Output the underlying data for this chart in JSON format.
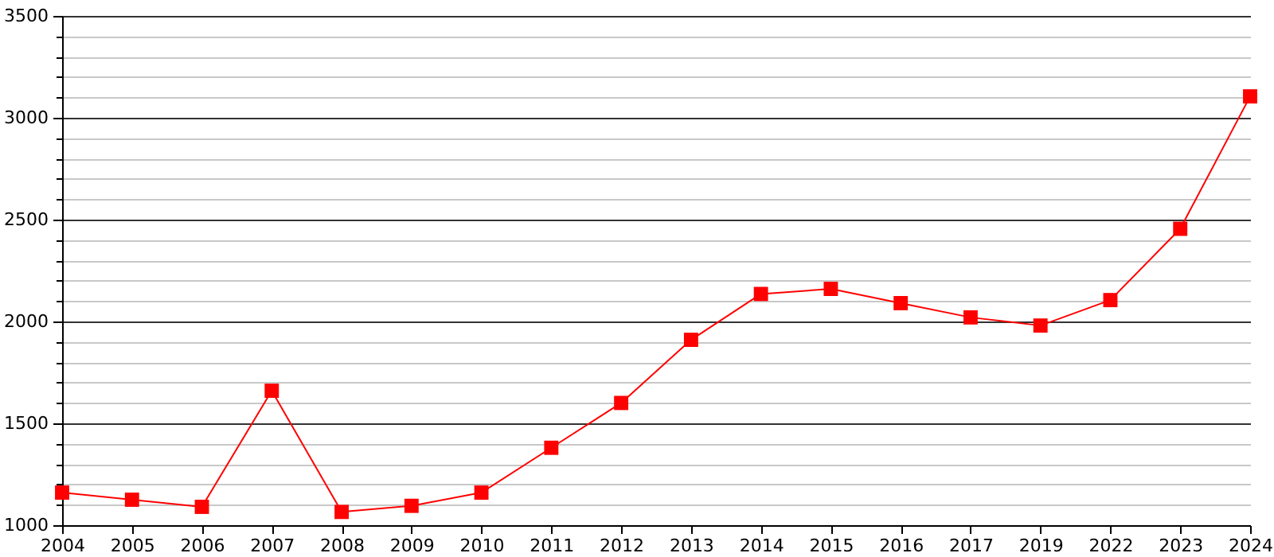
{
  "chart_data": {
    "type": "line",
    "categories": [
      "2004",
      "2005",
      "2006",
      "2007",
      "2008",
      "2009",
      "2010",
      "2011",
      "2012",
      "2013",
      "2014",
      "2015",
      "2016",
      "2017",
      "2019",
      "2022",
      "2023",
      "2024"
    ],
    "series": [
      {
        "color": "#ff0000",
        "values": [
          1160,
          1125,
          1090,
          1660,
          1065,
          1095,
          1160,
          1380,
          1600,
          1910,
          2135,
          2160,
          2090,
          2020,
          1980,
          2105,
          2455,
          3105
        ]
      }
    ],
    "ylim": [
      1000,
      3500
    ],
    "yticks": [
      1000,
      {
        "value": 1100,
        "label": null
      },
      {
        "value": 1200,
        "label": null
      },
      {
        "value": 1300,
        "label": null
      },
      {
        "value": 1400,
        "label": null
      },
      1500,
      {
        "value": 1600,
        "label": null
      },
      {
        "value": 1700,
        "label": null
      },
      {
        "value": 1800,
        "label": null
      },
      {
        "value": 1900,
        "label": null
      },
      2000,
      {
        "value": 2100,
        "label": null
      },
      {
        "value": 2200,
        "label": null
      },
      {
        "value": 2300,
        "label": null
      },
      {
        "value": 2400,
        "label": null
      },
      2500,
      {
        "value": 2600,
        "label": null
      },
      {
        "value": 2700,
        "label": null
      },
      {
        "value": 2800,
        "label": null
      },
      {
        "value": 2900,
        "label": null
      },
      3000,
      {
        "value": 3100,
        "label": null
      },
      {
        "value": 3200,
        "label": null
      },
      {
        "value": 3300,
        "label": null
      },
      {
        "value": 3400,
        "label": null
      },
      3500
    ],
    "grid": "y",
    "marker": "square",
    "line_style": "solid"
  }
}
